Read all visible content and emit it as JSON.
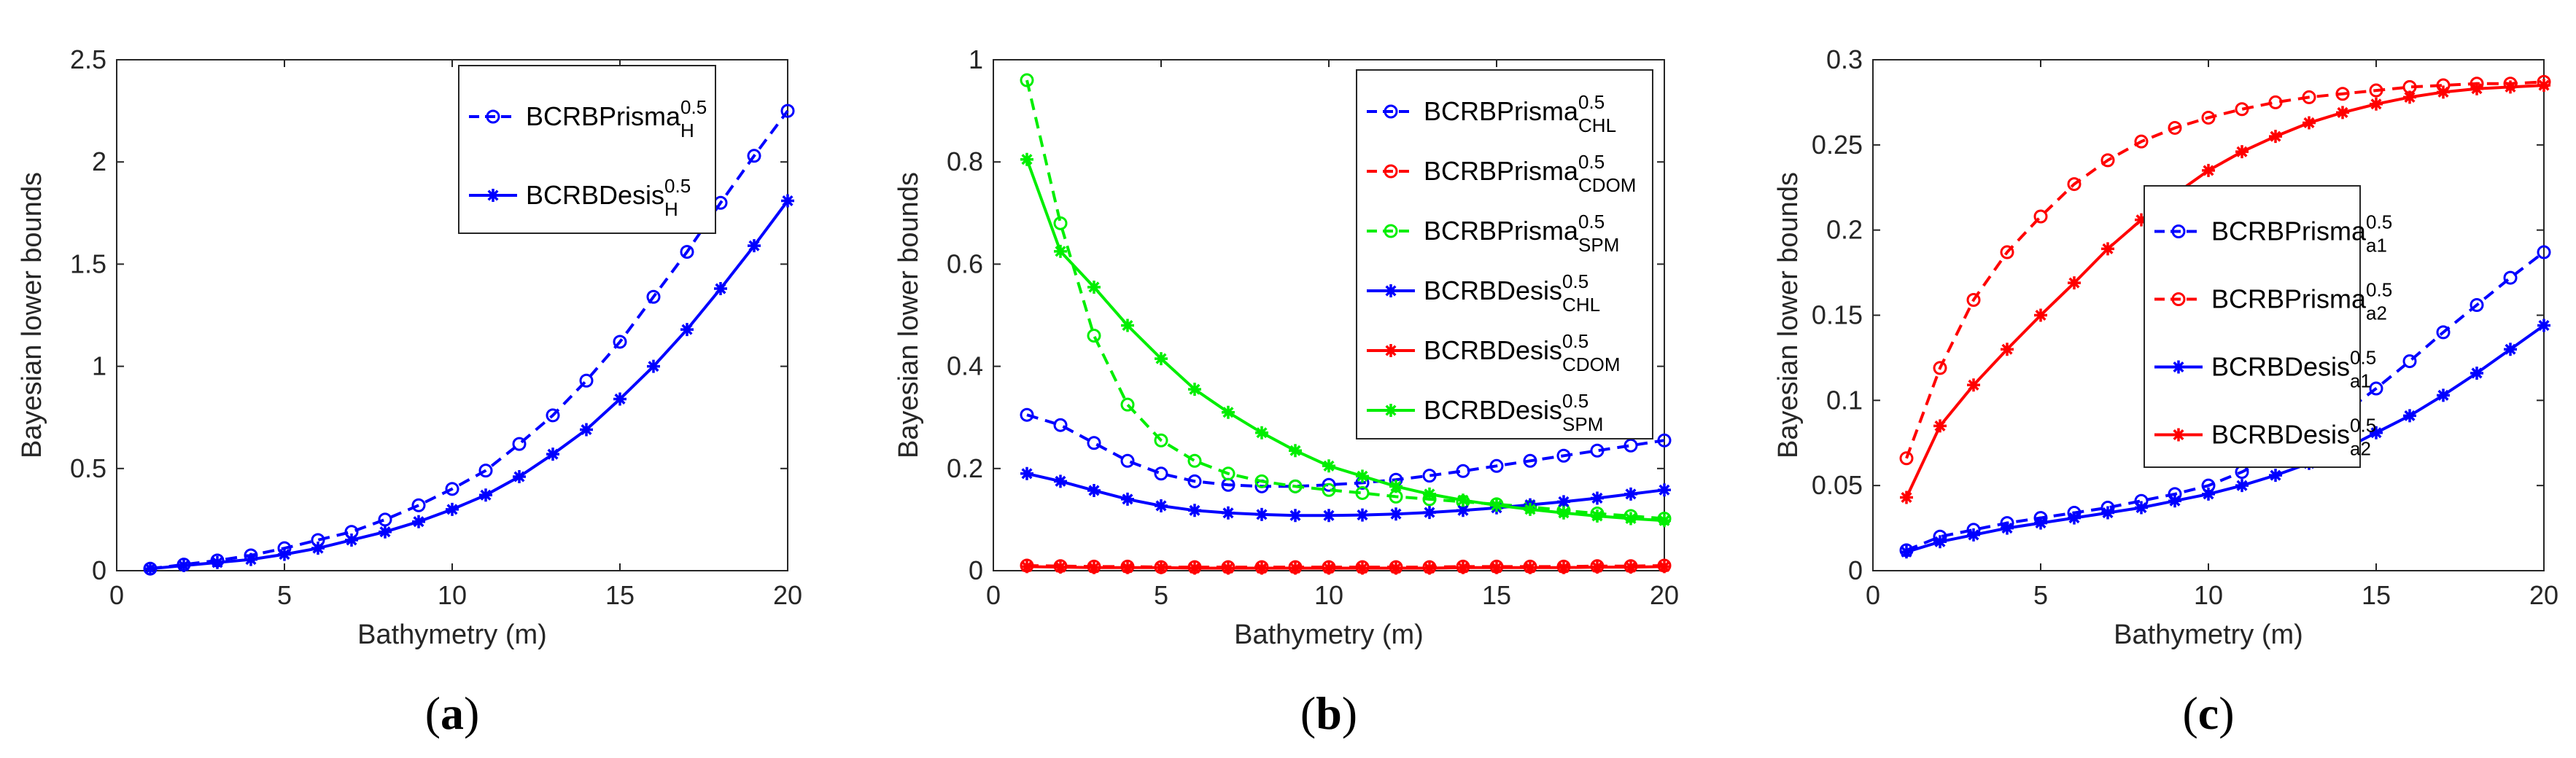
{
  "chart_data": [
    {
      "type": "line",
      "panel": "(a)",
      "caption_letter": "a",
      "xlabel": "Bathymetry (m)",
      "ylabel": "Bayesian lower bounds",
      "xlim": [
        0,
        20
      ],
      "ylim": [
        0,
        2.5
      ],
      "xticks": [
        0,
        5,
        10,
        15,
        20
      ],
      "xtick_labels": [
        "0",
        "5",
        "10",
        "15",
        "20"
      ],
      "yticks": [
        0,
        0.5,
        1,
        1.5,
        2,
        2.5
      ],
      "ytick_labels": [
        "0",
        "0.5",
        "1",
        "1.5",
        "2",
        "2.5"
      ],
      "grid": false,
      "legend_position": "top-right",
      "x": [
        1,
        2,
        3,
        4,
        5,
        6,
        7,
        8,
        9,
        10,
        11,
        12,
        13,
        14,
        15,
        16,
        17,
        18,
        19,
        20
      ],
      "series": [
        {
          "name_base": "BCRBPrisma",
          "name_sup": "0.5",
          "name_sub": "H",
          "color": "#0000ff",
          "line_style": "dashed",
          "marker": "circle",
          "values": [
            0.01,
            0.03,
            0.05,
            0.075,
            0.11,
            0.15,
            0.19,
            0.25,
            0.32,
            0.4,
            0.49,
            0.62,
            0.76,
            0.93,
            1.12,
            1.34,
            1.56,
            1.8,
            2.03,
            2.25
          ]
        },
        {
          "name_base": "BCRBDesis",
          "name_sup": "0.5",
          "name_sub": "H",
          "color": "#0000ff",
          "line_style": "solid",
          "marker": "star",
          "values": [
            0.01,
            0.025,
            0.04,
            0.055,
            0.08,
            0.11,
            0.15,
            0.19,
            0.24,
            0.3,
            0.37,
            0.46,
            0.57,
            0.69,
            0.84,
            1.0,
            1.18,
            1.38,
            1.59,
            1.81
          ]
        }
      ]
    },
    {
      "type": "line",
      "panel": "(b)",
      "caption_letter": "b",
      "xlabel": "Bathymetry (m)",
      "ylabel": "Bayesian lower bounds",
      "xlim": [
        0,
        20
      ],
      "ylim": [
        0,
        1
      ],
      "xticks": [
        0,
        5,
        10,
        15,
        20
      ],
      "xtick_labels": [
        "0",
        "5",
        "10",
        "15",
        "20"
      ],
      "yticks": [
        0,
        0.2,
        0.4,
        0.6,
        0.8,
        1
      ],
      "ytick_labels": [
        "0",
        "0.2",
        "0.4",
        "0.6",
        "0.8",
        "1"
      ],
      "grid": false,
      "legend_position": "top-right",
      "x": [
        1,
        2,
        3,
        4,
        5,
        6,
        7,
        8,
        9,
        10,
        11,
        12,
        13,
        14,
        15,
        16,
        17,
        18,
        19,
        20
      ],
      "series": [
        {
          "name_base": "BCRBPrisma",
          "name_sup": "0.5",
          "name_sub": "CHL",
          "color": "#0000ff",
          "line_style": "dashed",
          "marker": "circle",
          "values": [
            0.305,
            0.285,
            0.25,
            0.215,
            0.19,
            0.175,
            0.168,
            0.165,
            0.165,
            0.168,
            0.172,
            0.178,
            0.186,
            0.195,
            0.205,
            0.215,
            0.225,
            0.235,
            0.245,
            0.255
          ]
        },
        {
          "name_base": "BCRBPrisma",
          "name_sup": "0.5",
          "name_sub": "CDOM",
          "color": "#ff0000",
          "line_style": "dashed",
          "marker": "circle",
          "values": [
            0.01,
            0.009,
            0.008,
            0.008,
            0.007,
            0.007,
            0.007,
            0.007,
            0.007,
            0.007,
            0.007,
            0.007,
            0.007,
            0.008,
            0.008,
            0.008,
            0.008,
            0.009,
            0.009,
            0.01
          ]
        },
        {
          "name_base": "BCRBPrisma",
          "name_sup": "0.5",
          "name_sub": "SPM",
          "color": "#00ee00",
          "line_style": "dashed",
          "marker": "circle",
          "values": [
            0.96,
            0.68,
            0.46,
            0.325,
            0.255,
            0.215,
            0.19,
            0.175,
            0.165,
            0.158,
            0.152,
            0.145,
            0.14,
            0.135,
            0.13,
            0.125,
            0.118,
            0.112,
            0.107,
            0.102
          ]
        },
        {
          "name_base": "BCRBDesis",
          "name_sup": "0.5",
          "name_sub": "CHL",
          "color": "#0000ff",
          "line_style": "solid",
          "marker": "star",
          "values": [
            0.19,
            0.175,
            0.157,
            0.14,
            0.127,
            0.118,
            0.113,
            0.11,
            0.108,
            0.108,
            0.109,
            0.111,
            0.114,
            0.118,
            0.123,
            0.129,
            0.135,
            0.142,
            0.15,
            0.158
          ]
        },
        {
          "name_base": "BCRBDesis",
          "name_sup": "0.5",
          "name_sub": "CDOM",
          "color": "#ff0000",
          "line_style": "solid",
          "marker": "star",
          "values": [
            0.008,
            0.007,
            0.006,
            0.006,
            0.006,
            0.005,
            0.005,
            0.005,
            0.005,
            0.005,
            0.005,
            0.005,
            0.005,
            0.006,
            0.006,
            0.006,
            0.006,
            0.007,
            0.007,
            0.008
          ]
        },
        {
          "name_base": "BCRBDesis",
          "name_sup": "0.5",
          "name_sub": "SPM",
          "color": "#00ee00",
          "line_style": "solid",
          "marker": "star",
          "values": [
            0.805,
            0.625,
            0.555,
            0.48,
            0.415,
            0.355,
            0.31,
            0.27,
            0.235,
            0.205,
            0.185,
            0.165,
            0.15,
            0.138,
            0.128,
            0.12,
            0.113,
            0.107,
            0.102,
            0.098
          ]
        }
      ]
    },
    {
      "type": "line",
      "panel": "(c)",
      "caption_letter": "c",
      "xlabel": "Bathymetry (m)",
      "ylabel": "Bayesian lower bounds",
      "xlim": [
        0,
        20
      ],
      "ylim": [
        0,
        0.3
      ],
      "xticks": [
        0,
        5,
        10,
        15,
        20
      ],
      "xtick_labels": [
        "0",
        "5",
        "10",
        "15",
        "20"
      ],
      "yticks": [
        0,
        0.05,
        0.1,
        0.15,
        0.2,
        0.25,
        0.3
      ],
      "ytick_labels": [
        "0",
        "0.05",
        "0.1",
        "0.15",
        "0.2",
        "0.25",
        "0.3"
      ],
      "grid": false,
      "legend_position": "center-right",
      "x": [
        1,
        2,
        3,
        4,
        5,
        6,
        7,
        8,
        9,
        10,
        11,
        12,
        13,
        14,
        15,
        16,
        17,
        18,
        19,
        20
      ],
      "series": [
        {
          "name_base": "BCRBPrisma",
          "name_sup": "0.5",
          "name_sub": "a1",
          "color": "#0000ff",
          "line_style": "dashed",
          "marker": "circle",
          "values": [
            0.012,
            0.02,
            0.024,
            0.028,
            0.031,
            0.034,
            0.037,
            0.041,
            0.045,
            0.05,
            0.058,
            0.068,
            0.079,
            0.092,
            0.107,
            0.123,
            0.14,
            0.156,
            0.172,
            0.187
          ]
        },
        {
          "name_base": "BCRBPrisma",
          "name_sup": "0.5",
          "name_sub": "a2",
          "color": "#ff0000",
          "line_style": "dashed",
          "marker": "circle",
          "values": [
            0.066,
            0.119,
            0.159,
            0.187,
            0.208,
            0.227,
            0.241,
            0.252,
            0.26,
            0.266,
            0.271,
            0.275,
            0.278,
            0.28,
            0.282,
            0.284,
            0.285,
            0.286,
            0.286,
            0.287
          ]
        },
        {
          "name_base": "BCRBDesis",
          "name_sup": "0.5",
          "name_sub": "a1",
          "color": "#0000ff",
          "line_style": "solid",
          "marker": "star",
          "values": [
            0.011,
            0.017,
            0.021,
            0.025,
            0.028,
            0.031,
            0.034,
            0.037,
            0.041,
            0.045,
            0.05,
            0.056,
            0.063,
            0.071,
            0.081,
            0.091,
            0.103,
            0.116,
            0.13,
            0.144
          ]
        },
        {
          "name_base": "BCRBDesis",
          "name_sup": "0.5",
          "name_sub": "a2",
          "color": "#ff0000",
          "line_style": "solid",
          "marker": "star",
          "values": [
            0.043,
            0.085,
            0.109,
            0.13,
            0.15,
            0.169,
            0.189,
            0.206,
            0.221,
            0.235,
            0.246,
            0.255,
            0.263,
            0.269,
            0.274,
            0.278,
            0.281,
            0.283,
            0.284,
            0.285
          ]
        }
      ]
    }
  ]
}
